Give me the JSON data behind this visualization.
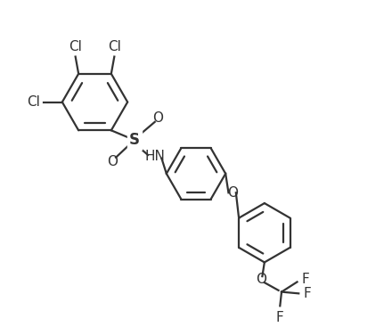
{
  "background_color": "#ffffff",
  "line_color": "#333333",
  "line_width": 1.6,
  "font_size": 11,
  "figsize": [
    4.4,
    3.67
  ],
  "dpi": 100,
  "r1cx": 0.175,
  "r1cy": 0.68,
  "r1r": 0.105,
  "r2cx": 0.5,
  "r2cy": 0.45,
  "r2r": 0.095,
  "r3cx": 0.72,
  "r3cy": 0.26,
  "r3r": 0.095,
  "ao1": 0,
  "ao2": 0,
  "ao3": 0,
  "Cl1_label": "Cl",
  "Cl2_label": "Cl",
  "Cl3_label": "Cl",
  "S_label": "S",
  "O_up_label": "O",
  "O_dn_label": "O",
  "HN_label": "HN",
  "O_ether_label": "O",
  "O_cf3_label": "O",
  "F1_label": "F",
  "F2_label": "F",
  "F3_label": "F"
}
